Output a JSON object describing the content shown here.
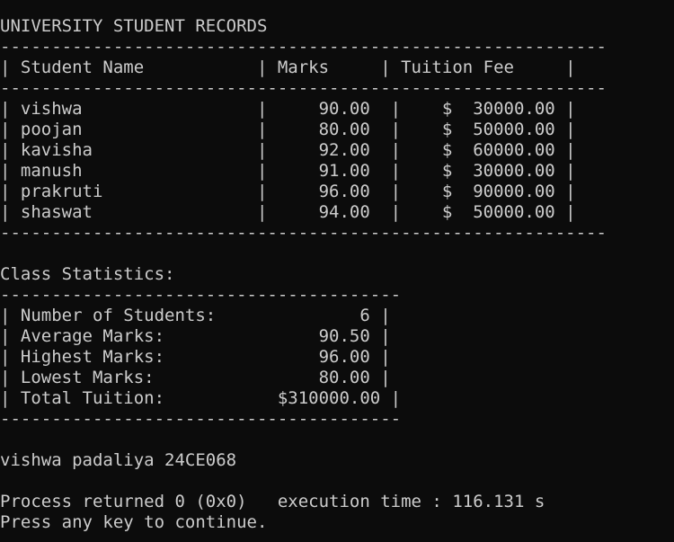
{
  "title": "UNIVERSITY STUDENT RECORDS",
  "table": {
    "rule": "-----------------------------------------------------------",
    "header": "| Student Name           | Marks     | Tuition Fee     |",
    "rows": [
      "| vishwa                 |     90.00  |    $  30000.00 |",
      "| poojan                 |     80.00  |    $  50000.00 |",
      "| kavisha                |     92.00  |    $  60000.00 |",
      "| manush                 |     91.00  |    $  30000.00 |",
      "| prakruti               |     96.00  |    $  90000.00 |",
      "| shaswat                |     94.00  |    $  50000.00 |"
    ]
  },
  "stats": {
    "heading": "Class Statistics:",
    "rule": "---------------------------------------",
    "lines": [
      "| Number of Students:              6 |",
      "| Average Marks:               90.50 |",
      "| Highest Marks:               96.00 |",
      "| Lowest Marks:                80.00 |",
      "| Total Tuition:           $310000.00 |"
    ]
  },
  "author_line": "vishwa padaliya 24CE068",
  "process_line": "Process returned 0 (0x0)   execution time : 116.131 s",
  "continue_line": "Press any key to continue."
}
